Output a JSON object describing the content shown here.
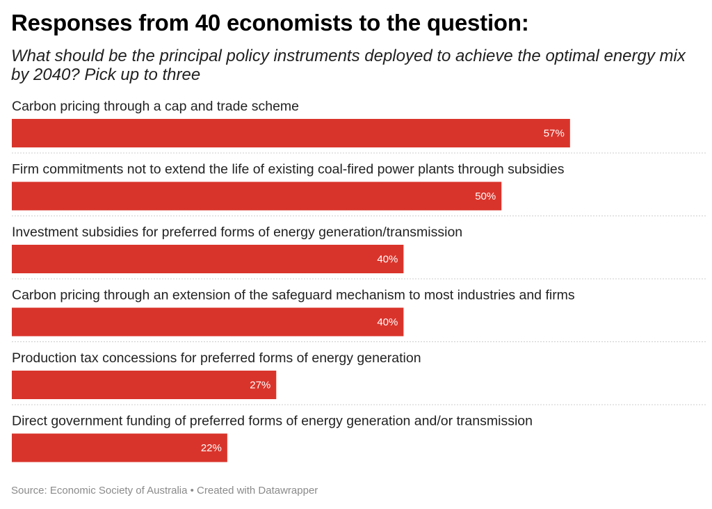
{
  "header": {
    "title": "Responses from 40 economists to the question:",
    "subtitle": "What should be the principal policy instruments deployed to achieve the optimal energy mix by 2040? Pick up to three"
  },
  "chart_data": {
    "type": "bar",
    "orientation": "horizontal",
    "categories": [
      "Carbon pricing through a cap and trade scheme",
      "Firm commitments not to extend the life of existing coal-fired power plants through subsidies",
      "Investment subsidies for preferred forms of energy generation/transmission",
      "Carbon pricing through an extension of the safeguard mechanism to most industries and firms",
      "Production tax concessions for preferred forms of energy generation",
      "Direct government funding of preferred forms of energy generation and/or transmission"
    ],
    "values": [
      57,
      50,
      40,
      40,
      27,
      22
    ],
    "value_labels": [
      "57%",
      "50%",
      "40%",
      "40%",
      "27%",
      "22%"
    ],
    "xlim": [
      0,
      71
    ],
    "grid": false,
    "bar_color": "#d9342b",
    "separator_color": "#cccccc"
  },
  "footer": {
    "source": "Source: Economic Society of Australia • Created with Datawrapper"
  }
}
